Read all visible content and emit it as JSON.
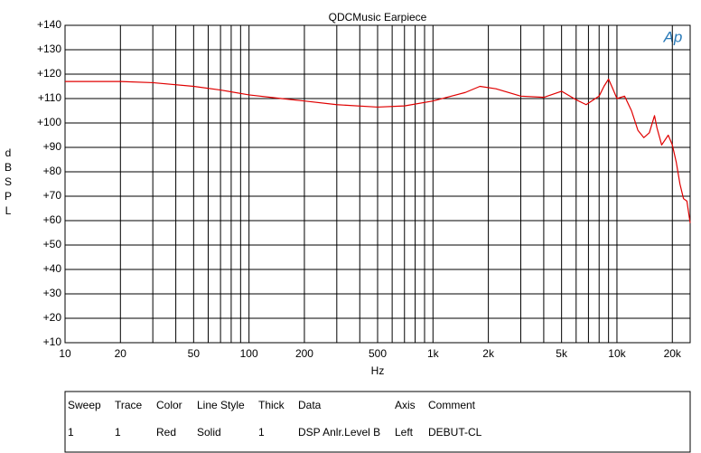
{
  "chart_data": {
    "type": "line",
    "title": "QDCMusic Earpiece",
    "logo": "Ap",
    "x_label": "Hz",
    "y_label": "dBSPL",
    "x_log": true,
    "grid": true,
    "color": "#e00000",
    "xlim": [
      10,
      25000
    ],
    "ylim": [
      10,
      140
    ],
    "xticks": [
      {
        "value": 10,
        "label": "10"
      },
      {
        "value": 20,
        "label": "20"
      },
      {
        "value": 50,
        "label": "50"
      },
      {
        "value": 100,
        "label": "100"
      },
      {
        "value": 200,
        "label": "200"
      },
      {
        "value": 500,
        "label": "500"
      },
      {
        "value": 1000,
        "label": "1k"
      },
      {
        "value": 2000,
        "label": "2k"
      },
      {
        "value": 5000,
        "label": "5k"
      },
      {
        "value": 10000,
        "label": "10k"
      },
      {
        "value": 20000,
        "label": "20k"
      }
    ],
    "x_minor_ticks": [
      30,
      40,
      60,
      70,
      80,
      90,
      300,
      400,
      600,
      700,
      800,
      900,
      3000,
      4000,
      6000,
      7000,
      8000,
      9000
    ],
    "yticks": [
      {
        "value": 10,
        "label": "+10"
      },
      {
        "value": 20,
        "label": "+20"
      },
      {
        "value": 30,
        "label": "+30"
      },
      {
        "value": 40,
        "label": "+40"
      },
      {
        "value": 50,
        "label": "+50"
      },
      {
        "value": 60,
        "label": "+60"
      },
      {
        "value": 70,
        "label": "+70"
      },
      {
        "value": 80,
        "label": "+80"
      },
      {
        "value": 90,
        "label": "+90"
      },
      {
        "value": 100,
        "label": "+100"
      },
      {
        "value": 110,
        "label": "+110"
      },
      {
        "value": 120,
        "label": "+120"
      },
      {
        "value": 130,
        "label": "+130"
      },
      {
        "value": 140,
        "label": "+140"
      }
    ],
    "x": [
      10,
      20,
      30,
      50,
      70,
      100,
      150,
      200,
      300,
      500,
      700,
      1000,
      1500,
      1800,
      2200,
      3000,
      4000,
      5000,
      6000,
      6800,
      8000,
      8500,
      9000,
      9500,
      10000,
      11000,
      12000,
      13000,
      14000,
      15000,
      16000,
      16500,
      17500,
      19000,
      20000,
      21000,
      22000,
      23000,
      24000,
      25000
    ],
    "values": [
      117,
      117,
      116.5,
      115,
      113.5,
      111.5,
      110,
      109,
      107.5,
      106.5,
      107,
      109,
      112.5,
      115,
      114,
      111,
      110.5,
      113,
      109.5,
      107.5,
      111,
      115,
      118,
      114,
      110,
      111,
      105,
      97,
      94,
      96,
      103,
      98,
      91,
      95,
      91,
      84,
      75,
      69,
      68,
      59
    ]
  },
  "legend_table": {
    "columns": [
      "Sweep",
      "Trace",
      "Color",
      "Line Style",
      "Thick",
      "Data",
      "Axis",
      "Comment"
    ],
    "rows": [
      [
        "1",
        "1",
        "Red",
        "Solid",
        "1",
        "DSP Anlr.Level B",
        "Left",
        "DEBUT-CL"
      ]
    ]
  }
}
